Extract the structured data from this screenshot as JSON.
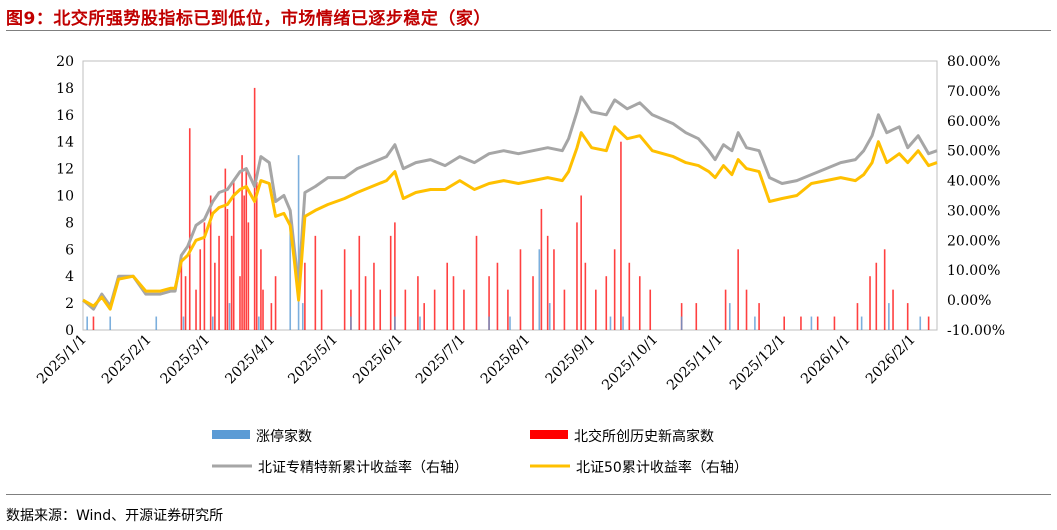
{
  "title": "图9：北交所强势股指标已到低位，市场情绪已逐步稳定（家）",
  "source": "数据来源：Wind、开源证券研究所",
  "chart_data": {
    "type": "bar",
    "title": "图9：北交所强势股指标已到低位，市场情绪已逐步稳定（家）",
    "left_axis": {
      "ylim": [
        0,
        20
      ],
      "ticks": [
        "0",
        "2",
        "4",
        "6",
        "8",
        "10",
        "12",
        "14",
        "16",
        "18",
        "20"
      ]
    },
    "right_axis": {
      "ylim": [
        -10,
        80
      ],
      "ticks": [
        "-10.00%",
        "0.00%",
        "10.00%",
        "20.00%",
        "30.00%",
        "40.00%",
        "50.00%",
        "60.00%",
        "70.00%",
        "80.00%"
      ]
    },
    "x_range": [
      "2025-01-01",
      "2026-02-13"
    ],
    "x_ticks": [
      "2025/1/1",
      "2025/2/1",
      "2025/3/1",
      "2025/4/1",
      "2025/5/1",
      "2025/6/1",
      "2025/7/1",
      "2025/8/1",
      "2025/9/1",
      "2025/10/1",
      "2025/11/1",
      "2025/12/1",
      "2026/1/1",
      "2026/2/1"
    ],
    "legend": [
      {
        "name": "涨停家数",
        "color": "#5b9bd5",
        "kind": "bar"
      },
      {
        "name": "北交所创历史新高家数",
        "color": "#ff0000",
        "kind": "bar"
      },
      {
        "name": "北证专精特新累计收益率（右轴）",
        "color": "#a6a6a6",
        "kind": "line"
      },
      {
        "name": "北证50累计收益率（右轴）",
        "color": "#ffc000",
        "kind": "line"
      }
    ],
    "legend_position": "bottom",
    "series": [
      {
        "name": "北证专精特新累计收益率（右轴）",
        "axis": "right",
        "color": "#a6a6a6",
        "points": [
          [
            "2025-01-01",
            0
          ],
          [
            "2025-01-06",
            -3
          ],
          [
            "2025-01-10",
            2
          ],
          [
            "2025-01-14",
            -2
          ],
          [
            "2025-01-18",
            8
          ],
          [
            "2025-01-25",
            8
          ],
          [
            "2025-01-31",
            2
          ],
          [
            "2025-02-07",
            2
          ],
          [
            "2025-02-12",
            3
          ],
          [
            "2025-02-14",
            3
          ],
          [
            "2025-02-17",
            15
          ],
          [
            "2025-02-20",
            18
          ],
          [
            "2025-02-24",
            25
          ],
          [
            "2025-02-28",
            27
          ],
          [
            "2025-03-04",
            33
          ],
          [
            "2025-03-07",
            36
          ],
          [
            "2025-03-11",
            37
          ],
          [
            "2025-03-14",
            40
          ],
          [
            "2025-03-17",
            43
          ],
          [
            "2025-03-20",
            44
          ],
          [
            "2025-03-24",
            38
          ],
          [
            "2025-03-27",
            48
          ],
          [
            "2025-03-31",
            46
          ],
          [
            "2025-04-03",
            33
          ],
          [
            "2025-04-07",
            35
          ],
          [
            "2025-04-10",
            30
          ],
          [
            "2025-04-12",
            17
          ],
          [
            "2025-04-14",
            5
          ],
          [
            "2025-04-17",
            36
          ],
          [
            "2025-04-22",
            38
          ],
          [
            "2025-04-28",
            41
          ],
          [
            "2025-05-06",
            41
          ],
          [
            "2025-05-12",
            44
          ],
          [
            "2025-05-19",
            46
          ],
          [
            "2025-05-26",
            48
          ],
          [
            "2025-05-30",
            52
          ],
          [
            "2025-06-03",
            44
          ],
          [
            "2025-06-09",
            46
          ],
          [
            "2025-06-16",
            47
          ],
          [
            "2025-06-23",
            45
          ],
          [
            "2025-06-30",
            48
          ],
          [
            "2025-07-07",
            46
          ],
          [
            "2025-07-14",
            49
          ],
          [
            "2025-07-21",
            50
          ],
          [
            "2025-07-28",
            49
          ],
          [
            "2025-08-04",
            50
          ],
          [
            "2025-08-11",
            51
          ],
          [
            "2025-08-18",
            50
          ],
          [
            "2025-08-21",
            54
          ],
          [
            "2025-08-25",
            63
          ],
          [
            "2025-08-27",
            68
          ],
          [
            "2025-09-01",
            63
          ],
          [
            "2025-09-08",
            62
          ],
          [
            "2025-09-12",
            67
          ],
          [
            "2025-09-18",
            64
          ],
          [
            "2025-09-24",
            66
          ],
          [
            "2025-09-30",
            62
          ],
          [
            "2025-10-10",
            59
          ],
          [
            "2025-10-16",
            56
          ],
          [
            "2025-10-22",
            54
          ],
          [
            "2025-10-27",
            50
          ],
          [
            "2025-10-30",
            47
          ],
          [
            "2025-11-03",
            52
          ],
          [
            "2025-11-07",
            50
          ],
          [
            "2025-11-10",
            56
          ],
          [
            "2025-11-14",
            51
          ],
          [
            "2025-11-20",
            50
          ],
          [
            "2025-11-25",
            41
          ],
          [
            "2025-12-01",
            39
          ],
          [
            "2025-12-08",
            40
          ],
          [
            "2025-12-15",
            42
          ],
          [
            "2025-12-22",
            44
          ],
          [
            "2025-12-29",
            46
          ],
          [
            "2026-01-05",
            47
          ],
          [
            "2026-01-09",
            50
          ],
          [
            "2026-01-13",
            55
          ],
          [
            "2026-01-16",
            62
          ],
          [
            "2026-01-20",
            56
          ],
          [
            "2026-01-26",
            58
          ],
          [
            "2026-01-30",
            51
          ],
          [
            "2026-02-04",
            55
          ],
          [
            "2026-02-09",
            49
          ],
          [
            "2026-02-13",
            50
          ]
        ]
      },
      {
        "name": "北证50累计收益率（右轴）",
        "axis": "right",
        "color": "#ffc000",
        "points": [
          [
            "2025-01-01",
            0
          ],
          [
            "2025-01-06",
            -2
          ],
          [
            "2025-01-10",
            1
          ],
          [
            "2025-01-14",
            -3
          ],
          [
            "2025-01-18",
            7
          ],
          [
            "2025-01-25",
            8
          ],
          [
            "2025-01-31",
            3
          ],
          [
            "2025-02-07",
            3
          ],
          [
            "2025-02-12",
            4
          ],
          [
            "2025-02-14",
            4
          ],
          [
            "2025-02-17",
            13
          ],
          [
            "2025-02-20",
            15
          ],
          [
            "2025-02-24",
            20
          ],
          [
            "2025-02-28",
            21
          ],
          [
            "2025-03-04",
            29
          ],
          [
            "2025-03-07",
            31
          ],
          [
            "2025-03-11",
            32
          ],
          [
            "2025-03-14",
            35
          ],
          [
            "2025-03-17",
            37
          ],
          [
            "2025-03-20",
            38
          ],
          [
            "2025-03-24",
            33
          ],
          [
            "2025-03-27",
            40
          ],
          [
            "2025-03-31",
            39
          ],
          [
            "2025-04-03",
            28
          ],
          [
            "2025-04-07",
            29
          ],
          [
            "2025-04-10",
            25
          ],
          [
            "2025-04-12",
            13
          ],
          [
            "2025-04-14",
            0
          ],
          [
            "2025-04-17",
            28
          ],
          [
            "2025-04-22",
            30
          ],
          [
            "2025-04-28",
            32
          ],
          [
            "2025-05-06",
            34
          ],
          [
            "2025-05-12",
            36
          ],
          [
            "2025-05-19",
            38
          ],
          [
            "2025-05-26",
            40
          ],
          [
            "2025-05-30",
            43
          ],
          [
            "2025-06-03",
            34
          ],
          [
            "2025-06-09",
            36
          ],
          [
            "2025-06-16",
            37
          ],
          [
            "2025-06-23",
            37
          ],
          [
            "2025-06-30",
            40
          ],
          [
            "2025-07-07",
            37
          ],
          [
            "2025-07-14",
            39
          ],
          [
            "2025-07-21",
            40
          ],
          [
            "2025-07-28",
            39
          ],
          [
            "2025-08-04",
            40
          ],
          [
            "2025-08-11",
            41
          ],
          [
            "2025-08-18",
            40
          ],
          [
            "2025-08-21",
            43
          ],
          [
            "2025-08-25",
            51
          ],
          [
            "2025-08-27",
            56
          ],
          [
            "2025-09-01",
            51
          ],
          [
            "2025-09-08",
            50
          ],
          [
            "2025-09-12",
            58
          ],
          [
            "2025-09-18",
            54
          ],
          [
            "2025-09-24",
            55
          ],
          [
            "2025-09-30",
            50
          ],
          [
            "2025-10-10",
            48
          ],
          [
            "2025-10-16",
            46
          ],
          [
            "2025-10-22",
            45
          ],
          [
            "2025-10-27",
            43
          ],
          [
            "2025-10-30",
            41
          ],
          [
            "2025-11-03",
            45
          ],
          [
            "2025-11-07",
            42
          ],
          [
            "2025-11-10",
            47
          ],
          [
            "2025-11-14",
            44
          ],
          [
            "2025-11-20",
            43
          ],
          [
            "2025-11-25",
            33
          ],
          [
            "2025-12-01",
            34
          ],
          [
            "2025-12-08",
            35
          ],
          [
            "2025-12-15",
            39
          ],
          [
            "2025-12-22",
            40
          ],
          [
            "2025-12-29",
            41
          ],
          [
            "2026-01-05",
            40
          ],
          [
            "2026-01-09",
            42
          ],
          [
            "2026-01-13",
            46
          ],
          [
            "2026-01-16",
            53
          ],
          [
            "2026-01-20",
            46
          ],
          [
            "2026-01-26",
            49
          ],
          [
            "2026-01-30",
            46
          ],
          [
            "2026-02-04",
            50
          ],
          [
            "2026-02-09",
            45
          ],
          [
            "2026-02-13",
            46
          ]
        ]
      }
    ],
    "bars_new_high": [
      [
        "2025-01-06",
        1
      ],
      [
        "2025-02-17",
        5
      ],
      [
        "2025-02-19",
        4
      ],
      [
        "2025-02-21",
        15
      ],
      [
        "2025-02-24",
        3
      ],
      [
        "2025-02-26",
        6
      ],
      [
        "2025-02-28",
        8
      ],
      [
        "2025-03-03",
        10
      ],
      [
        "2025-03-05",
        5
      ],
      [
        "2025-03-07",
        7
      ],
      [
        "2025-03-10",
        12
      ],
      [
        "2025-03-11",
        9
      ],
      [
        "2025-03-13",
        7
      ],
      [
        "2025-03-14",
        11
      ],
      [
        "2025-03-17",
        4
      ],
      [
        "2025-03-18",
        13
      ],
      [
        "2025-03-19",
        10
      ],
      [
        "2025-03-20",
        12
      ],
      [
        "2025-03-21",
        8
      ],
      [
        "2025-03-24",
        18
      ],
      [
        "2025-03-25",
        11
      ],
      [
        "2025-03-27",
        6
      ],
      [
        "2025-03-28",
        3
      ],
      [
        "2025-04-01",
        2
      ],
      [
        "2025-04-03",
        4
      ],
      [
        "2025-04-17",
        5
      ],
      [
        "2025-04-22",
        7
      ],
      [
        "2025-04-25",
        3
      ],
      [
        "2025-05-06",
        6
      ],
      [
        "2025-05-09",
        3
      ],
      [
        "2025-05-13",
        7
      ],
      [
        "2025-05-16",
        4
      ],
      [
        "2025-05-20",
        5
      ],
      [
        "2025-05-23",
        3
      ],
      [
        "2025-05-28",
        7
      ],
      [
        "2025-05-30",
        8
      ],
      [
        "2025-06-04",
        3
      ],
      [
        "2025-06-10",
        4
      ],
      [
        "2025-06-13",
        2
      ],
      [
        "2025-06-18",
        3
      ],
      [
        "2025-06-24",
        5
      ],
      [
        "2025-06-27",
        4
      ],
      [
        "2025-07-02",
        3
      ],
      [
        "2025-07-08",
        7
      ],
      [
        "2025-07-14",
        4
      ],
      [
        "2025-07-18",
        5
      ],
      [
        "2025-07-23",
        3
      ],
      [
        "2025-07-29",
        6
      ],
      [
        "2025-08-04",
        4
      ],
      [
        "2025-08-08",
        9
      ],
      [
        "2025-08-11",
        7
      ],
      [
        "2025-08-14",
        6
      ],
      [
        "2025-08-19",
        3
      ],
      [
        "2025-08-25",
        8
      ],
      [
        "2025-08-27",
        10
      ],
      [
        "2025-08-29",
        5
      ],
      [
        "2025-09-03",
        3
      ],
      [
        "2025-09-08",
        4
      ],
      [
        "2025-09-12",
        6
      ],
      [
        "2025-09-15",
        14
      ],
      [
        "2025-09-19",
        5
      ],
      [
        "2025-09-24",
        4
      ],
      [
        "2025-09-29",
        3
      ],
      [
        "2025-10-14",
        2
      ],
      [
        "2025-10-21",
        2
      ],
      [
        "2025-11-04",
        3
      ],
      [
        "2025-11-10",
        6
      ],
      [
        "2025-11-14",
        3
      ],
      [
        "2025-11-20",
        2
      ],
      [
        "2025-12-02",
        1
      ],
      [
        "2025-12-10",
        1
      ],
      [
        "2025-12-18",
        1
      ],
      [
        "2025-12-26",
        1
      ],
      [
        "2026-01-06",
        2
      ],
      [
        "2026-01-12",
        4
      ],
      [
        "2026-01-15",
        5
      ],
      [
        "2026-01-19",
        6
      ],
      [
        "2026-01-23",
        3
      ],
      [
        "2026-01-30",
        2
      ],
      [
        "2026-02-09",
        1
      ]
    ],
    "bars_limit_up": [
      [
        "2025-01-03",
        1
      ],
      [
        "2025-01-14",
        1
      ],
      [
        "2025-02-05",
        1
      ],
      [
        "2025-02-18",
        1
      ],
      [
        "2025-03-04",
        1
      ],
      [
        "2025-03-12",
        2
      ],
      [
        "2025-03-26",
        1
      ],
      [
        "2025-04-10",
        9
      ],
      [
        "2025-04-14",
        13
      ],
      [
        "2025-04-16",
        2
      ],
      [
        "2025-05-09",
        1
      ],
      [
        "2025-05-30",
        1
      ],
      [
        "2025-06-11",
        1
      ],
      [
        "2025-07-14",
        1
      ],
      [
        "2025-07-24",
        1
      ],
      [
        "2025-08-07",
        6
      ],
      [
        "2025-08-12",
        2
      ],
      [
        "2025-09-10",
        1
      ],
      [
        "2025-09-16",
        1
      ],
      [
        "2025-10-14",
        1
      ],
      [
        "2025-11-06",
        2
      ],
      [
        "2025-11-18",
        1
      ],
      [
        "2025-12-15",
        1
      ],
      [
        "2026-01-08",
        1
      ],
      [
        "2026-01-21",
        2
      ],
      [
        "2026-02-05",
        1
      ]
    ]
  }
}
